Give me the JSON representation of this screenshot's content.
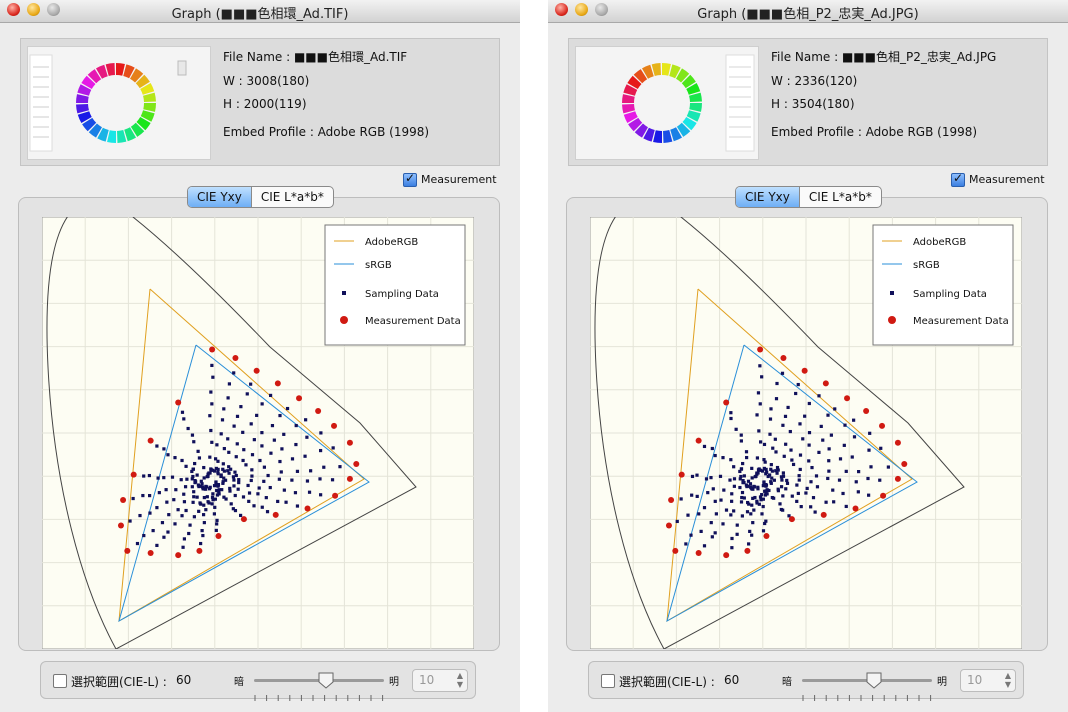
{
  "windows": [
    {
      "title": "Graph (■■■色相環_Ad.TIF)",
      "file_name": "File Name : ■■■色相環_Ad.TIF",
      "width_line": "W : 3008(180)",
      "height_line": "H : 2000(119)",
      "profile_line": "Embed Profile : Adobe RGB (1998)",
      "measurement": {
        "label": "Measurement",
        "checked": true
      },
      "tabs": [
        "CIE Yxy",
        "CIE L*a*b*"
      ],
      "active_tab": "CIE Yxy",
      "legend": [
        "AdobeRGB",
        "sRGB",
        "Sampling Data",
        "Measurement Data"
      ],
      "range_label": "選択範囲(CIE-L) :",
      "range_value": "60",
      "slider_left": "暗",
      "slider_right": "明",
      "stepper_value": "10"
    },
    {
      "title": "Graph (■■■色相_P2_忠実_Ad.JPG)",
      "file_name": "File Name : ■■■色相_P2_忠実_Ad.JPG",
      "width_line": "W : 2336(120)",
      "height_line": "H : 3504(180)",
      "profile_line": "Embed Profile : Adobe RGB (1998)",
      "measurement": {
        "label": "Measurement",
        "checked": true
      },
      "tabs": [
        "CIE Yxy",
        "CIE L*a*b*"
      ],
      "active_tab": "CIE Yxy",
      "legend": [
        "AdobeRGB",
        "sRGB",
        "Sampling Data",
        "Measurement Data"
      ],
      "range_label": "選択範囲(CIE-L) :",
      "range_value": "60",
      "slider_left": "暗",
      "slider_right": "明",
      "stepper_value": "10"
    }
  ],
  "colors": {
    "adobe_rgb_line": "#e0a020",
    "srgb_line": "#2a8fd8",
    "sampling_dot": "#10105a",
    "measurement_dot": "#d01a12",
    "plot_bg": "#fdfdf3",
    "grid": "#e4e4d8"
  }
}
